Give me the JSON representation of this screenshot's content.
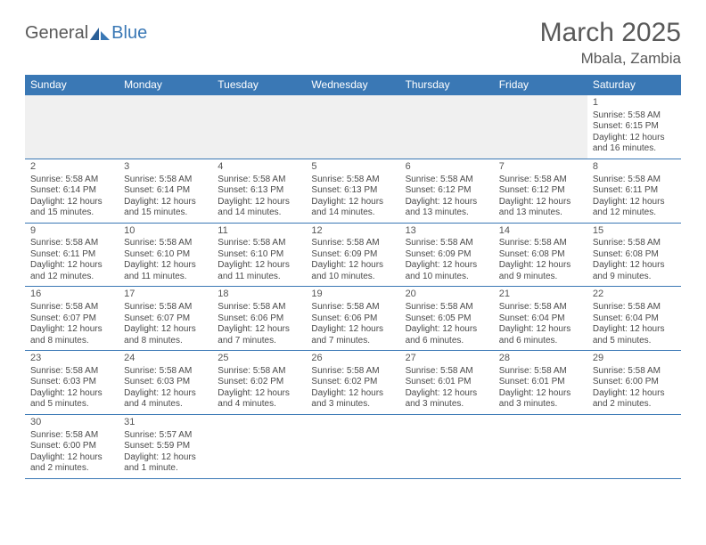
{
  "branding": {
    "logo_word1": "General",
    "logo_word2": "Blue",
    "logo_color1": "#595959",
    "logo_color2": "#3a78b5"
  },
  "header": {
    "title": "March 2025",
    "location": "Mbala, Zambia"
  },
  "colors": {
    "header_bg": "#3a78b5",
    "header_text": "#ffffff",
    "grid_line": "#3a78b5",
    "body_text": "#4a4a4a",
    "empty_bg": "#f0f0f0",
    "page_bg": "#ffffff"
  },
  "day_headers": [
    "Sunday",
    "Monday",
    "Tuesday",
    "Wednesday",
    "Thursday",
    "Friday",
    "Saturday"
  ],
  "weeks": [
    [
      null,
      null,
      null,
      null,
      null,
      null,
      {
        "n": "1",
        "sr": "Sunrise: 5:58 AM",
        "ss": "Sunset: 6:15 PM",
        "d1": "Daylight: 12 hours",
        "d2": "and 16 minutes."
      }
    ],
    [
      {
        "n": "2",
        "sr": "Sunrise: 5:58 AM",
        "ss": "Sunset: 6:14 PM",
        "d1": "Daylight: 12 hours",
        "d2": "and 15 minutes."
      },
      {
        "n": "3",
        "sr": "Sunrise: 5:58 AM",
        "ss": "Sunset: 6:14 PM",
        "d1": "Daylight: 12 hours",
        "d2": "and 15 minutes."
      },
      {
        "n": "4",
        "sr": "Sunrise: 5:58 AM",
        "ss": "Sunset: 6:13 PM",
        "d1": "Daylight: 12 hours",
        "d2": "and 14 minutes."
      },
      {
        "n": "5",
        "sr": "Sunrise: 5:58 AM",
        "ss": "Sunset: 6:13 PM",
        "d1": "Daylight: 12 hours",
        "d2": "and 14 minutes."
      },
      {
        "n": "6",
        "sr": "Sunrise: 5:58 AM",
        "ss": "Sunset: 6:12 PM",
        "d1": "Daylight: 12 hours",
        "d2": "and 13 minutes."
      },
      {
        "n": "7",
        "sr": "Sunrise: 5:58 AM",
        "ss": "Sunset: 6:12 PM",
        "d1": "Daylight: 12 hours",
        "d2": "and 13 minutes."
      },
      {
        "n": "8",
        "sr": "Sunrise: 5:58 AM",
        "ss": "Sunset: 6:11 PM",
        "d1": "Daylight: 12 hours",
        "d2": "and 12 minutes."
      }
    ],
    [
      {
        "n": "9",
        "sr": "Sunrise: 5:58 AM",
        "ss": "Sunset: 6:11 PM",
        "d1": "Daylight: 12 hours",
        "d2": "and 12 minutes."
      },
      {
        "n": "10",
        "sr": "Sunrise: 5:58 AM",
        "ss": "Sunset: 6:10 PM",
        "d1": "Daylight: 12 hours",
        "d2": "and 11 minutes."
      },
      {
        "n": "11",
        "sr": "Sunrise: 5:58 AM",
        "ss": "Sunset: 6:10 PM",
        "d1": "Daylight: 12 hours",
        "d2": "and 11 minutes."
      },
      {
        "n": "12",
        "sr": "Sunrise: 5:58 AM",
        "ss": "Sunset: 6:09 PM",
        "d1": "Daylight: 12 hours",
        "d2": "and 10 minutes."
      },
      {
        "n": "13",
        "sr": "Sunrise: 5:58 AM",
        "ss": "Sunset: 6:09 PM",
        "d1": "Daylight: 12 hours",
        "d2": "and 10 minutes."
      },
      {
        "n": "14",
        "sr": "Sunrise: 5:58 AM",
        "ss": "Sunset: 6:08 PM",
        "d1": "Daylight: 12 hours",
        "d2": "and 9 minutes."
      },
      {
        "n": "15",
        "sr": "Sunrise: 5:58 AM",
        "ss": "Sunset: 6:08 PM",
        "d1": "Daylight: 12 hours",
        "d2": "and 9 minutes."
      }
    ],
    [
      {
        "n": "16",
        "sr": "Sunrise: 5:58 AM",
        "ss": "Sunset: 6:07 PM",
        "d1": "Daylight: 12 hours",
        "d2": "and 8 minutes."
      },
      {
        "n": "17",
        "sr": "Sunrise: 5:58 AM",
        "ss": "Sunset: 6:07 PM",
        "d1": "Daylight: 12 hours",
        "d2": "and 8 minutes."
      },
      {
        "n": "18",
        "sr": "Sunrise: 5:58 AM",
        "ss": "Sunset: 6:06 PM",
        "d1": "Daylight: 12 hours",
        "d2": "and 7 minutes."
      },
      {
        "n": "19",
        "sr": "Sunrise: 5:58 AM",
        "ss": "Sunset: 6:06 PM",
        "d1": "Daylight: 12 hours",
        "d2": "and 7 minutes."
      },
      {
        "n": "20",
        "sr": "Sunrise: 5:58 AM",
        "ss": "Sunset: 6:05 PM",
        "d1": "Daylight: 12 hours",
        "d2": "and 6 minutes."
      },
      {
        "n": "21",
        "sr": "Sunrise: 5:58 AM",
        "ss": "Sunset: 6:04 PM",
        "d1": "Daylight: 12 hours",
        "d2": "and 6 minutes."
      },
      {
        "n": "22",
        "sr": "Sunrise: 5:58 AM",
        "ss": "Sunset: 6:04 PM",
        "d1": "Daylight: 12 hours",
        "d2": "and 5 minutes."
      }
    ],
    [
      {
        "n": "23",
        "sr": "Sunrise: 5:58 AM",
        "ss": "Sunset: 6:03 PM",
        "d1": "Daylight: 12 hours",
        "d2": "and 5 minutes."
      },
      {
        "n": "24",
        "sr": "Sunrise: 5:58 AM",
        "ss": "Sunset: 6:03 PM",
        "d1": "Daylight: 12 hours",
        "d2": "and 4 minutes."
      },
      {
        "n": "25",
        "sr": "Sunrise: 5:58 AM",
        "ss": "Sunset: 6:02 PM",
        "d1": "Daylight: 12 hours",
        "d2": "and 4 minutes."
      },
      {
        "n": "26",
        "sr": "Sunrise: 5:58 AM",
        "ss": "Sunset: 6:02 PM",
        "d1": "Daylight: 12 hours",
        "d2": "and 3 minutes."
      },
      {
        "n": "27",
        "sr": "Sunrise: 5:58 AM",
        "ss": "Sunset: 6:01 PM",
        "d1": "Daylight: 12 hours",
        "d2": "and 3 minutes."
      },
      {
        "n": "28",
        "sr": "Sunrise: 5:58 AM",
        "ss": "Sunset: 6:01 PM",
        "d1": "Daylight: 12 hours",
        "d2": "and 3 minutes."
      },
      {
        "n": "29",
        "sr": "Sunrise: 5:58 AM",
        "ss": "Sunset: 6:00 PM",
        "d1": "Daylight: 12 hours",
        "d2": "and 2 minutes."
      }
    ],
    [
      {
        "n": "30",
        "sr": "Sunrise: 5:58 AM",
        "ss": "Sunset: 6:00 PM",
        "d1": "Daylight: 12 hours",
        "d2": "and 2 minutes."
      },
      {
        "n": "31",
        "sr": "Sunrise: 5:57 AM",
        "ss": "Sunset: 5:59 PM",
        "d1": "Daylight: 12 hours",
        "d2": "and 1 minute."
      },
      null,
      null,
      null,
      null,
      null
    ]
  ]
}
